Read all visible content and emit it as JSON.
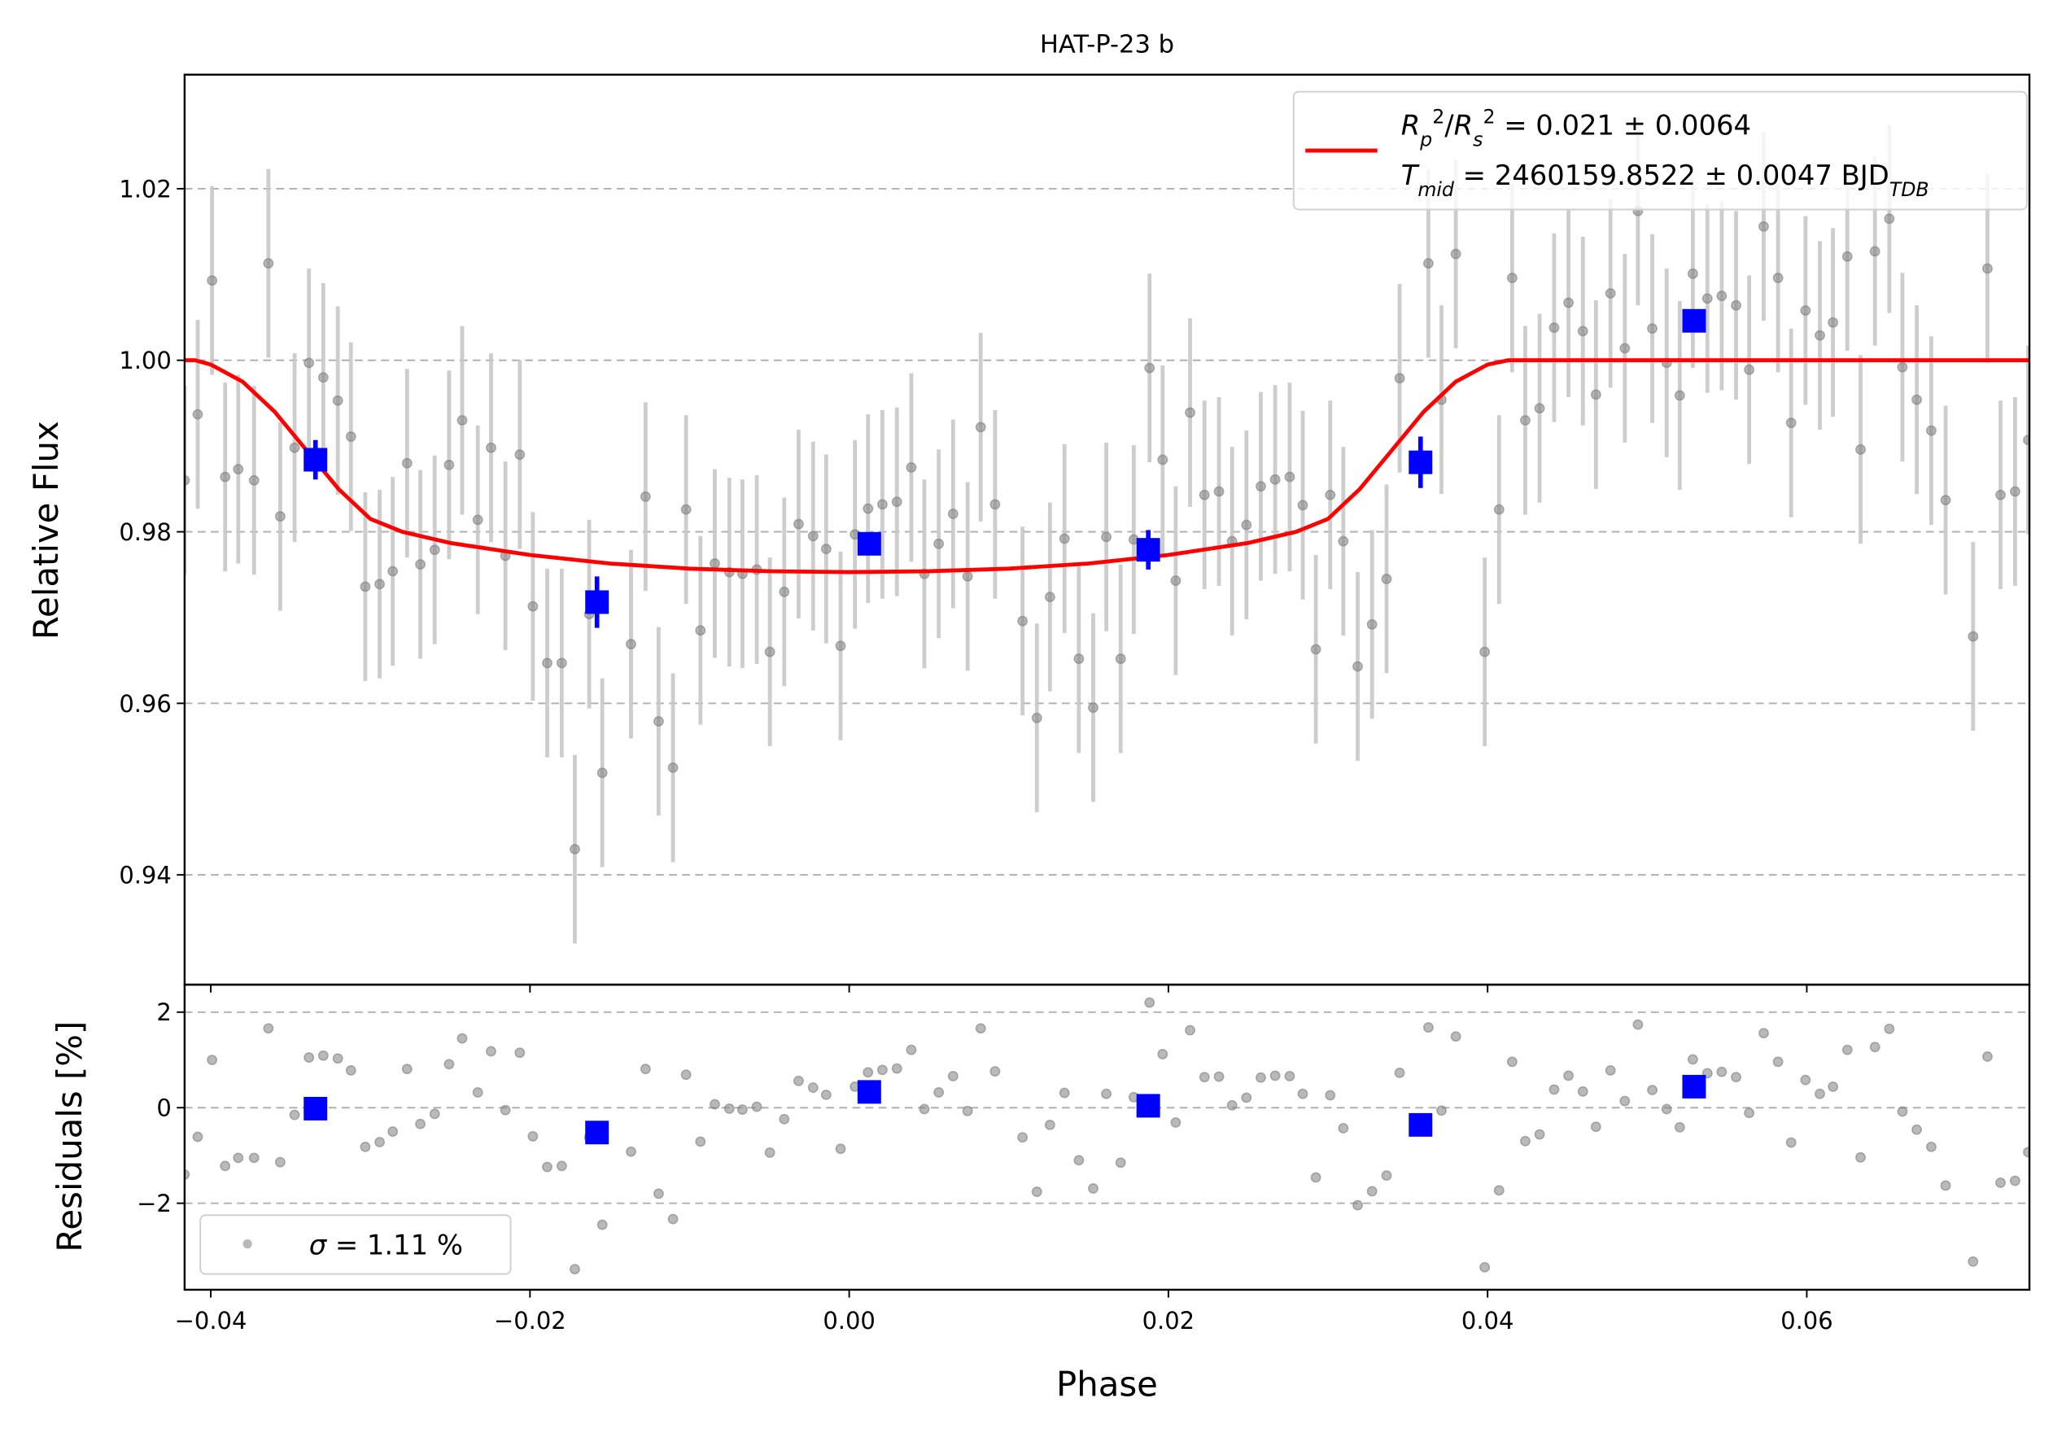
{
  "chart_data": [
    {
      "type": "scatter",
      "title": "HAT-P-23 b",
      "ylabel": "Relative Flux",
      "xlim": [
        -0.04164,
        0.07395
      ],
      "ylim": [
        0.9272,
        1.0333
      ],
      "yticks": [
        0.94,
        0.96,
        0.98,
        {
          "value": 1,
          "label": "1.00"
        },
        1.02
      ],
      "grid": true,
      "legend": "upper right",
      "data": {
        "color": "#808080",
        "error_color": "#c8c8c8",
        "x": [
          -0.04164,
          -0.04082,
          -0.03992,
          -0.0391,
          -0.03828,
          -0.03729,
          -0.03639,
          -0.03565,
          -0.03475,
          -0.03385,
          -0.03295,
          -0.03204,
          -0.03122,
          -0.03032,
          -0.02942,
          -0.0286,
          -0.0277,
          -0.02687,
          -0.02597,
          -0.02507,
          -0.02425,
          -0.02327,
          -0.02244,
          -0.02154,
          -0.02064,
          -0.01982,
          -0.01892,
          -0.01801,
          -0.01719,
          -0.01629,
          -0.01547,
          -0.01367,
          -0.01276,
          -0.01194,
          -0.01104,
          -0.01022,
          -0.00932,
          -0.00842,
          -0.00751,
          -0.00669,
          -0.00579,
          -0.00497,
          -0.00407,
          -0.00317,
          -0.00226,
          -0.00144,
          -0.00054,
          0.00036,
          0.00118,
          0.00208,
          0.00299,
          0.00389,
          0.00471,
          0.00561,
          0.00651,
          0.00742,
          0.00824,
          0.00914,
          0.01086,
          0.01176,
          0.01258,
          0.01349,
          0.01439,
          0.01529,
          0.01611,
          0.01701,
          0.01783,
          0.01882,
          0.01964,
          0.02046,
          0.02136,
          0.02226,
          0.02317,
          0.02399,
          0.02489,
          0.02579,
          0.02669,
          0.0276,
          0.02842,
          0.02924,
          0.03014,
          0.03096,
          0.03186,
          0.03276,
          0.03367,
          0.03449,
          0.03629,
          0.03711,
          0.03801,
          0.03982,
          0.04072,
          0.04154,
          0.04236,
          0.04326,
          0.04417,
          0.04507,
          0.04597,
          0.04679,
          0.0477,
          0.0486,
          0.04942,
          0.05032,
          0.05122,
          0.05204,
          0.05286,
          0.05377,
          0.05467,
          0.05557,
          0.05639,
          0.0573,
          0.0582,
          0.05902,
          0.05992,
          0.06082,
          0.06164,
          0.06254,
          0.06337,
          0.06427,
          0.06517,
          0.06599,
          0.06689,
          0.0678,
          0.0687,
          0.07042,
          0.07132,
          0.07214,
          0.07305,
          0.07387
        ],
        "values": [
          0.986,
          0.9937,
          1.0093,
          0.9864,
          0.9873,
          0.986,
          1.0113,
          0.9818,
          0.9898,
          0.9997,
          0.998,
          0.9953,
          0.9911,
          0.9736,
          0.9739,
          0.9754,
          0.988,
          0.9762,
          0.9779,
          0.9878,
          0.993,
          0.9814,
          0.9898,
          0.9772,
          0.989,
          0.9713,
          0.9647,
          0.9647,
          0.943,
          0.9704,
          0.9519,
          0.9669,
          0.9841,
          0.9579,
          0.9525,
          0.9826,
          0.9685,
          0.9763,
          0.9753,
          0.9751,
          0.9756,
          0.966,
          0.973,
          0.9809,
          0.9795,
          0.978,
          0.9667,
          0.9797,
          0.9827,
          0.9832,
          0.9835,
          0.9875,
          0.9751,
          0.9786,
          0.9821,
          0.9748,
          0.9922,
          0.9832,
          0.9696,
          0.9583,
          0.9724,
          0.9792,
          0.9652,
          0.9595,
          0.9794,
          0.9652,
          0.9791,
          0.9991,
          0.9884,
          0.9743,
          0.9939,
          0.9843,
          0.9847,
          0.9789,
          0.9808,
          0.9853,
          0.9861,
          0.9864,
          0.9831,
          0.9663,
          0.9843,
          0.9789,
          0.9643,
          0.9692,
          0.9745,
          0.9979,
          1.0113,
          0.9954,
          1.0124,
          0.966,
          0.9826,
          1.0096,
          0.993,
          0.9944,
          1.0038,
          1.0067,
          1.0034,
          0.996,
          1.0078,
          1.0014,
          1.0174,
          1.0037,
          0.9997,
          0.9959,
          1.0101,
          1.0072,
          1.0075,
          1.0064,
          0.9989,
          1.0156,
          1.0096,
          0.9927,
          1.0058,
          1.0029,
          1.0044,
          1.0121,
          0.9896,
          1.0127,
          1.0165,
          0.9992,
          0.9954,
          0.9918,
          0.9837,
          0.9678,
          1.0107,
          0.9843,
          0.9847,
          0.9907
        ],
        "errors": [
          0.011,
          0.011,
          0.011,
          0.011,
          0.011,
          0.011,
          0.011,
          0.011,
          0.011,
          0.011,
          0.011,
          0.011,
          0.011,
          0.011,
          0.011,
          0.011,
          0.011,
          0.011,
          0.011,
          0.011,
          0.011,
          0.011,
          0.011,
          0.011,
          0.011,
          0.011,
          0.011,
          0.011,
          0.011,
          0.011,
          0.011,
          0.011,
          0.011,
          0.011,
          0.011,
          0.011,
          0.011,
          0.011,
          0.011,
          0.011,
          0.011,
          0.011,
          0.011,
          0.011,
          0.011,
          0.011,
          0.011,
          0.011,
          0.011,
          0.011,
          0.011,
          0.011,
          0.011,
          0.011,
          0.011,
          0.011,
          0.011,
          0.011,
          0.011,
          0.011,
          0.011,
          0.011,
          0.011,
          0.011,
          0.011,
          0.011,
          0.011,
          0.011,
          0.011,
          0.011,
          0.011,
          0.011,
          0.011,
          0.011,
          0.011,
          0.011,
          0.011,
          0.011,
          0.011,
          0.011,
          0.011,
          0.011,
          0.011,
          0.011,
          0.011,
          0.011,
          0.011,
          0.011,
          0.011,
          0.011,
          0.011,
          0.011,
          0.011,
          0.011,
          0.011,
          0.011,
          0.011,
          0.011,
          0.011,
          0.011,
          0.011,
          0.011,
          0.011,
          0.011,
          0.011,
          0.011,
          0.011,
          0.011,
          0.011,
          0.011,
          0.011,
          0.011,
          0.011,
          0.011,
          0.011,
          0.011,
          0.011,
          0.011,
          0.011,
          0.011,
          0.011,
          0.011,
          0.011,
          0.011,
          0.011,
          0.011,
          0.011,
          0.011
        ]
      },
      "binned": {
        "color": "#0000ff",
        "x": [
          -0.03344,
          -0.0158,
          0.00126,
          0.01874,
          0.0358,
          0.05294
        ],
        "values": [
          0.9884,
          0.9718,
          0.9786,
          0.9779,
          0.9881,
          1.0046
        ],
        "errors": [
          0.0023,
          0.003,
          0.0008,
          0.0023,
          0.003,
          0.0008
        ]
      },
      "model": {
        "color": "#ff0000",
        "name": [
          [
            {
              "t": "R",
              "s": "i"
            },
            {
              "t": "p",
              "s": "sub"
            },
            {
              "t": "2",
              "s": "sup"
            },
            {
              "t": "/",
              "s": "n"
            },
            {
              "t": "R",
              "s": "i"
            },
            {
              "t": "s",
              "s": "sub"
            },
            {
              "t": "2",
              "s": "sup"
            },
            {
              "t": " = 0.021 ± 0.0064",
              "s": "n"
            }
          ],
          [
            {
              "t": "T",
              "s": "i"
            },
            {
              "t": "mid",
              "s": "sub"
            },
            {
              "t": " = 2460159.8522 ± 0.0047 BJD",
              "s": "n"
            },
            {
              "t": "TDB",
              "s": "sub"
            }
          ]
        ],
        "x": [
          -0.04164,
          -0.041,
          -0.04,
          -0.038,
          -0.036,
          -0.034,
          -0.032,
          -0.03,
          -0.028,
          -0.025,
          -0.02,
          -0.015,
          -0.01,
          -0.005,
          0,
          0.005,
          0.01,
          0.015,
          0.02,
          0.025,
          0.028,
          0.03,
          0.032,
          0.034,
          0.036,
          0.038,
          0.04,
          0.0413,
          0.07395
        ],
        "values": [
          1,
          1,
          0.9995,
          0.9975,
          0.994,
          0.9895,
          0.985,
          0.9815,
          0.98,
          0.9787,
          0.9773,
          0.9763,
          0.9757,
          0.9754,
          0.9753,
          0.9754,
          0.9757,
          0.9763,
          0.9773,
          0.9787,
          0.98,
          0.9815,
          0.985,
          0.9895,
          0.994,
          0.9975,
          0.9995,
          1,
          1
        ]
      }
    },
    {
      "type": "scatter",
      "xlabel": "Phase",
      "ylabel": "Residuals [%]",
      "xlim": [
        -0.04164,
        0.07395
      ],
      "ylim": [
        -3.81,
        2.575
      ],
      "xticks": [
        {
          "value": -0.04,
          "label": "−0.04"
        },
        {
          "value": -0.02,
          "label": "−0.02"
        },
        {
          "value": 0,
          "label": "0.00"
        },
        0.02,
        0.04,
        0.06
      ],
      "yticks": [
        {
          "value": -2,
          "label": "−2"
        },
        0,
        2
      ],
      "grid": true,
      "legend": "lower left",
      "data": {
        "color": "#808080",
        "name": [
          [
            {
              "t": "σ",
              "s": "i"
            },
            {
              "t": " = 1.11 %",
              "s": "n"
            }
          ]
        ],
        "x": [
          -0.04164,
          -0.04082,
          -0.03992,
          -0.0391,
          -0.03828,
          -0.03729,
          -0.03639,
          -0.03565,
          -0.03475,
          -0.03385,
          -0.03295,
          -0.03204,
          -0.03122,
          -0.03032,
          -0.02942,
          -0.0286,
          -0.0277,
          -0.02687,
          -0.02597,
          -0.02507,
          -0.02425,
          -0.02327,
          -0.02244,
          -0.02154,
          -0.02064,
          -0.01982,
          -0.01892,
          -0.01801,
          -0.01719,
          -0.01629,
          -0.01547,
          -0.01367,
          -0.01276,
          -0.01194,
          -0.01104,
          -0.01022,
          -0.00932,
          -0.00842,
          -0.00751,
          -0.00669,
          -0.00579,
          -0.00497,
          -0.00407,
          -0.00317,
          -0.00226,
          -0.00144,
          -0.00054,
          0.00036,
          0.00118,
          0.00208,
          0.00299,
          0.00389,
          0.00471,
          0.00561,
          0.00651,
          0.00742,
          0.00824,
          0.00914,
          0.01086,
          0.01176,
          0.01258,
          0.01349,
          0.01439,
          0.01529,
          0.01611,
          0.01701,
          0.01783,
          0.01882,
          0.01964,
          0.02046,
          0.02136,
          0.02226,
          0.02317,
          0.02399,
          0.02489,
          0.02579,
          0.02669,
          0.0276,
          0.02842,
          0.02924,
          0.03014,
          0.03096,
          0.03186,
          0.03276,
          0.03367,
          0.03449,
          0.03629,
          0.03711,
          0.03801,
          0.03982,
          0.04072,
          0.04154,
          0.04236,
          0.04326,
          0.04417,
          0.04507,
          0.04597,
          0.04679,
          0.0477,
          0.0486,
          0.04942,
          0.05032,
          0.05122,
          0.05204,
          0.05286,
          0.05377,
          0.05467,
          0.05557,
          0.05639,
          0.0573,
          0.0582,
          0.05902,
          0.05992,
          0.06082,
          0.06164,
          0.06254,
          0.06337,
          0.06427,
          0.06517,
          0.06599,
          0.06689,
          0.0678,
          0.0687,
          0.07042,
          0.07132,
          0.07214,
          0.07305,
          0.07387
        ],
        "values": [
          -1.4,
          -0.61,
          1,
          -1.22,
          -1.05,
          -1.05,
          1.66,
          -1.14,
          -0.15,
          1.05,
          1.09,
          1.03,
          0.78,
          -0.82,
          -0.72,
          -0.5,
          0.81,
          -0.34,
          -0.13,
          0.91,
          1.45,
          0.32,
          1.18,
          -0.05,
          1.15,
          -0.6,
          -1.24,
          -1.22,
          -3.38,
          -0.62,
          -2.45,
          -0.92,
          0.81,
          -1.8,
          -2.33,
          0.69,
          -0.71,
          0.07,
          -0.02,
          -0.04,
          0.02,
          -0.94,
          -0.24,
          0.56,
          0.42,
          0.27,
          -0.86,
          0.44,
          0.74,
          0.79,
          0.82,
          1.21,
          -0.03,
          0.32,
          0.66,
          -0.07,
          1.66,
          0.76,
          -0.62,
          -1.76,
          -0.36,
          0.31,
          -1.1,
          -1.69,
          0.29,
          -1.15,
          0.22,
          2.2,
          1.12,
          -0.31,
          1.62,
          0.64,
          0.65,
          0.05,
          0.21,
          0.63,
          0.67,
          0.66,
          0.29,
          -1.46,
          0.26,
          -0.43,
          -2.04,
          -1.75,
          -1.42,
          0.73,
          1.68,
          -0.06,
          1.49,
          -3.34,
          -1.73,
          0.96,
          -0.7,
          -0.56,
          0.38,
          0.67,
          0.34,
          -0.4,
          0.78,
          0.14,
          1.74,
          0.37,
          -0.03,
          -0.41,
          1.01,
          0.72,
          0.75,
          0.64,
          -0.11,
          1.56,
          0.96,
          -0.73,
          0.58,
          0.29,
          0.44,
          1.21,
          -1.04,
          1.27,
          1.65,
          -0.08,
          -0.46,
          -0.82,
          -1.63,
          -3.22,
          1.07,
          -1.57,
          -1.53,
          -0.93
        ]
      },
      "binned": {
        "color": "#0000ff",
        "x": [
          -0.03344,
          -0.0158,
          0.00126,
          0.01874,
          0.0358,
          0.05294
        ],
        "values": [
          -0.02,
          -0.52,
          0.33,
          0.04,
          -0.36,
          0.44
        ]
      }
    }
  ]
}
